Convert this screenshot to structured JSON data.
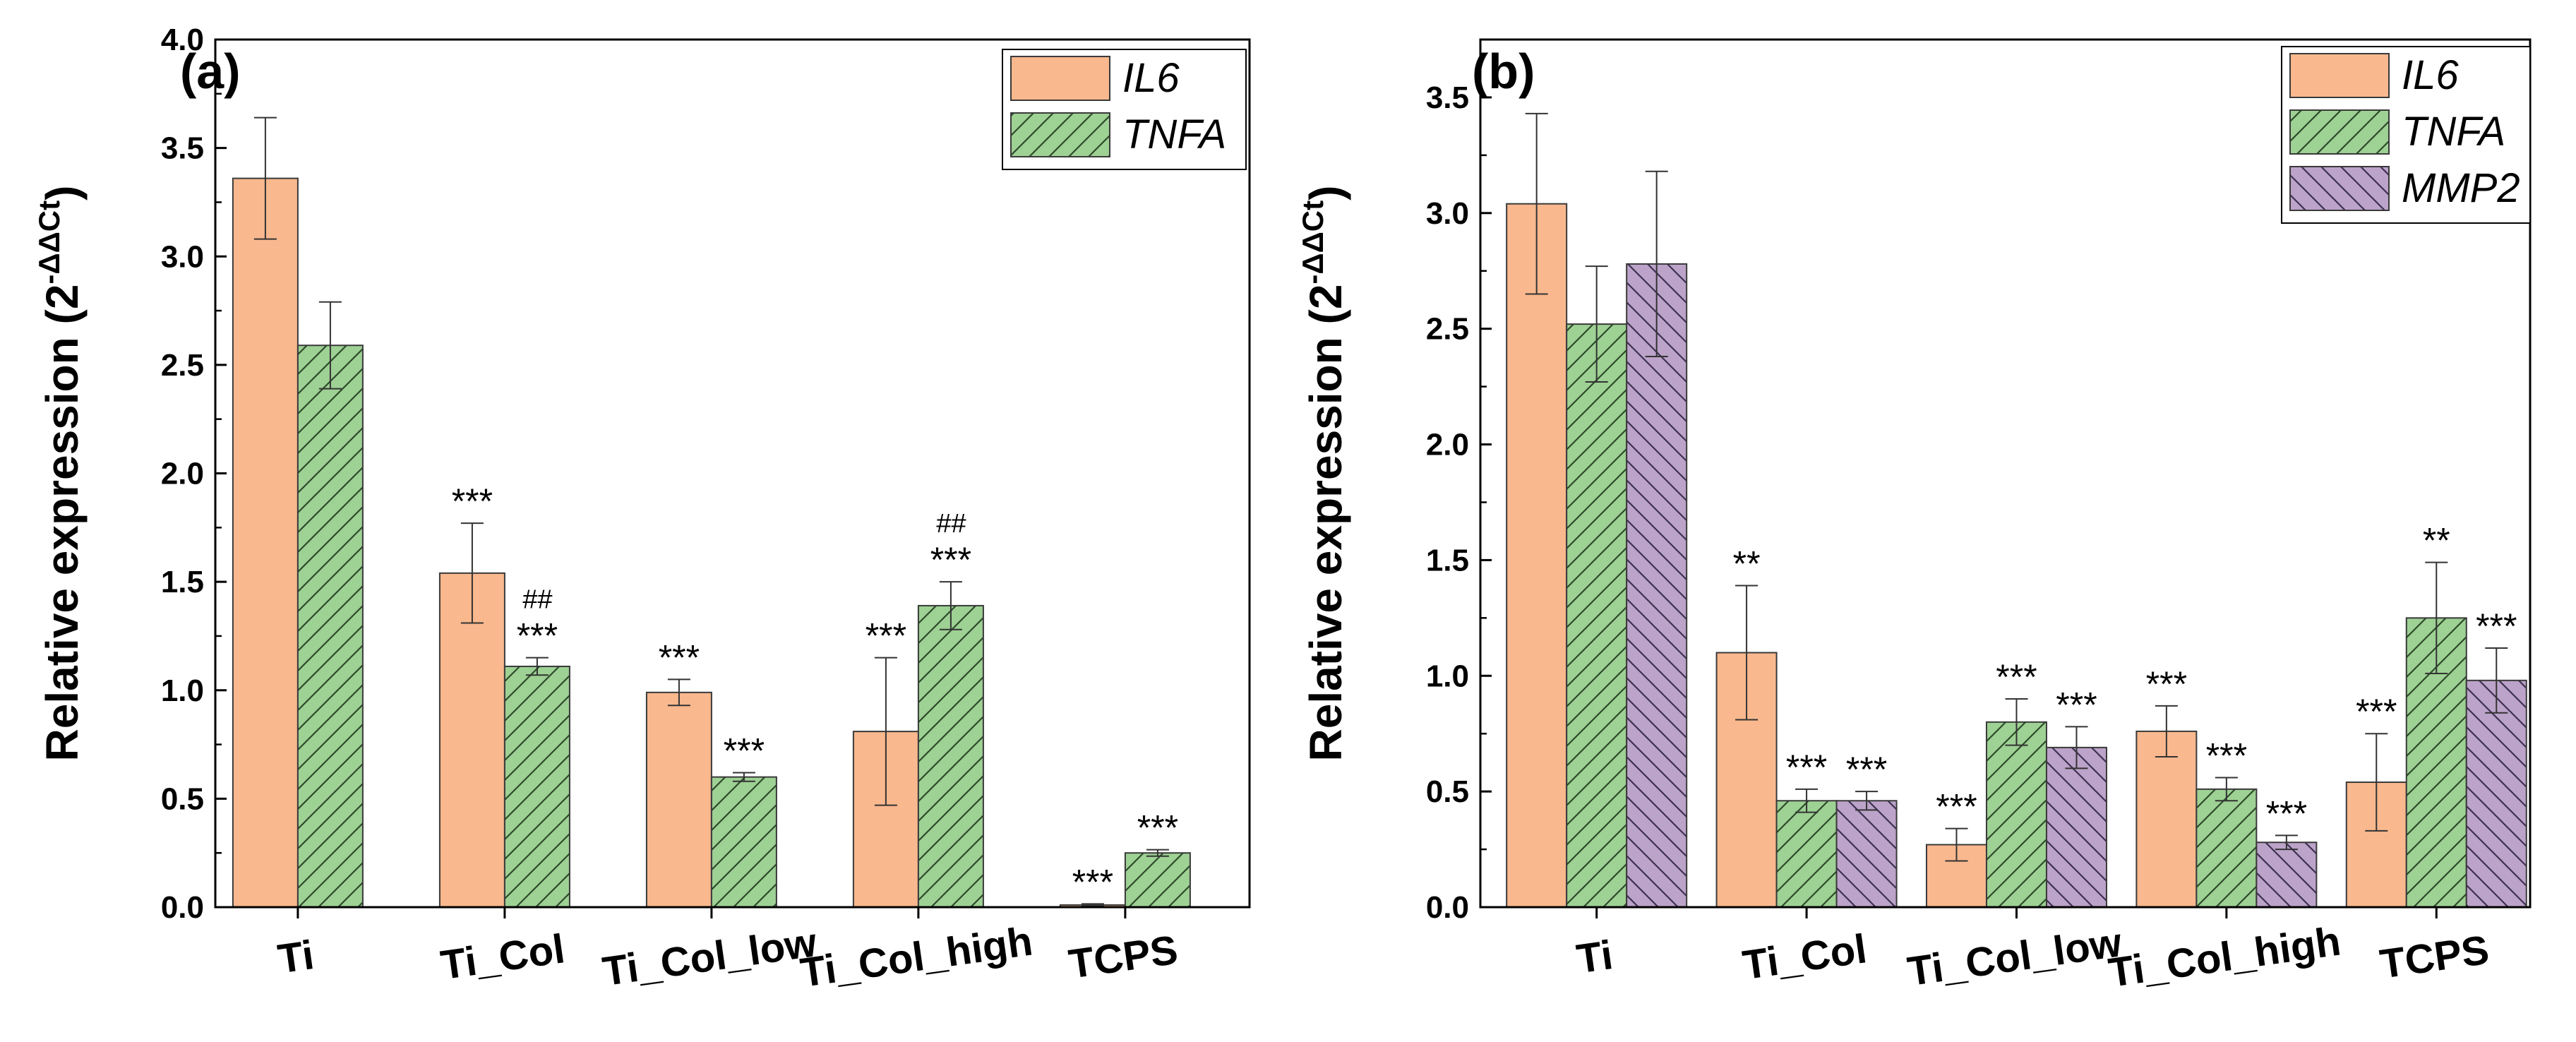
{
  "chart_data": [
    {
      "type": "bar",
      "panel_label": "(a)",
      "ylabel": "Relative expression (2",
      "ylabel_sup": "-ΔΔCt",
      "ylabel_close": ")",
      "ylim": [
        0,
        4.0
      ],
      "yticks": [
        "0.0",
        "0.5",
        "1.0",
        "1.5",
        "2.0",
        "2.5",
        "3.0",
        "3.5",
        "4.0"
      ],
      "categories": [
        "Ti",
        "Ti_Col",
        "Ti_Col_low",
        "Ti_Col_high",
        "TCPS"
      ],
      "legend_position": "top-right",
      "series": [
        {
          "name": "IL6",
          "color": "#f9b88e",
          "hatch": "none",
          "values": [
            3.36,
            1.54,
            0.99,
            0.81,
            0.01
          ],
          "errors": [
            0.28,
            0.23,
            0.06,
            0.34,
            0.005
          ],
          "sig": [
            "",
            "***",
            "***",
            "***",
            "***"
          ],
          "sig_hash": [
            "",
            "",
            "",
            "",
            ""
          ]
        },
        {
          "name": "TNFA",
          "color": "#9ed194",
          "hatch": "forward",
          "values": [
            2.59,
            1.11,
            0.6,
            1.39,
            0.25
          ],
          "errors": [
            0.2,
            0.04,
            0.02,
            0.11,
            0.015
          ],
          "sig": [
            "",
            "***",
            "***",
            "***",
            "***"
          ],
          "sig_hash": [
            "",
            "##",
            "",
            "##",
            ""
          ]
        }
      ]
    },
    {
      "type": "bar",
      "panel_label": "(b)",
      "ylabel": "Relative expression (2",
      "ylabel_sup": "-ΔΔCt",
      "ylabel_close": ")",
      "ylim": [
        0,
        3.75
      ],
      "yticks": [
        "0.0",
        "0.5",
        "1.0",
        "1.5",
        "2.0",
        "2.5",
        "3.0",
        "3.5"
      ],
      "categories": [
        "Ti",
        "Ti_Col",
        "Ti_Col_low",
        "Ti_Col_high",
        "TCPS"
      ],
      "legend_position": "top-right",
      "series": [
        {
          "name": "IL6",
          "color": "#f9b88e",
          "hatch": "none",
          "values": [
            3.04,
            1.1,
            0.27,
            0.76,
            0.54
          ],
          "errors": [
            0.39,
            0.29,
            0.07,
            0.11,
            0.21
          ],
          "sig": [
            "",
            "**",
            "***",
            "***",
            "***"
          ]
        },
        {
          "name": "TNFA",
          "color": "#9ed194",
          "hatch": "forward",
          "values": [
            2.52,
            0.46,
            0.8,
            0.51,
            1.25
          ],
          "errors": [
            0.25,
            0.05,
            0.1,
            0.05,
            0.24
          ],
          "sig": [
            "",
            "***",
            "***",
            "***",
            "**"
          ]
        },
        {
          "name": "MMP2",
          "color": "#bca3c9",
          "hatch": "backward",
          "values": [
            2.78,
            0.46,
            0.69,
            0.28,
            0.98
          ],
          "errors": [
            0.4,
            0.04,
            0.09,
            0.03,
            0.14
          ],
          "sig": [
            "",
            "***",
            "***",
            "***",
            "***"
          ]
        }
      ]
    }
  ]
}
